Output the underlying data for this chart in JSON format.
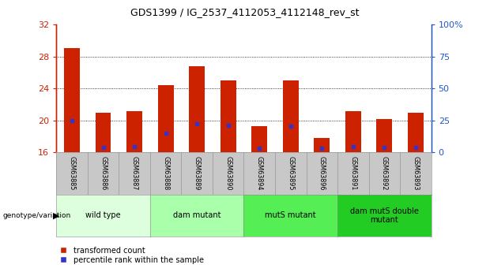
{
  "title": "GDS1399 / IG_2537_4112053_4112148_rev_st",
  "samples": [
    "GSM63885",
    "GSM63886",
    "GSM63887",
    "GSM63888",
    "GSM63889",
    "GSM63890",
    "GSM63894",
    "GSM63895",
    "GSM63896",
    "GSM63891",
    "GSM63892",
    "GSM63893"
  ],
  "bar_tops": [
    29.0,
    21.0,
    21.2,
    24.4,
    26.8,
    25.0,
    19.3,
    25.0,
    17.8,
    21.2,
    20.2,
    21.0
  ],
  "blue_positions": [
    20.0,
    16.6,
    16.7,
    18.4,
    19.6,
    19.4,
    16.5,
    19.3,
    16.5,
    16.7,
    16.6,
    16.6
  ],
  "bar_bottom": 16.0,
  "ylim_left": [
    16,
    32
  ],
  "yticks_left": [
    16,
    20,
    24,
    28,
    32
  ],
  "yticks_right_vals": [
    0,
    25,
    50,
    75,
    100
  ],
  "yticks_right_labels": [
    "0",
    "25",
    "50",
    "75",
    "100%"
  ],
  "groups": [
    {
      "label": "wild type",
      "start": 0,
      "end": 3,
      "color": "#ddffdd"
    },
    {
      "label": "dam mutant",
      "start": 3,
      "end": 6,
      "color": "#aaffaa"
    },
    {
      "label": "mutS mutant",
      "start": 6,
      "end": 9,
      "color": "#55ee55"
    },
    {
      "label": "dam mutS double\nmutant",
      "start": 9,
      "end": 12,
      "color": "#22cc22"
    }
  ],
  "bar_color": "#cc2200",
  "blue_color": "#3333cc",
  "bar_width": 0.5,
  "left_axis_color": "#cc2200",
  "right_axis_color": "#2255cc",
  "background_color": "#ffffff",
  "sample_bg_color": "#c8c8c8",
  "legend_items": [
    "transformed count",
    "percentile rank within the sample"
  ],
  "group_label_x": "genotype/variation"
}
